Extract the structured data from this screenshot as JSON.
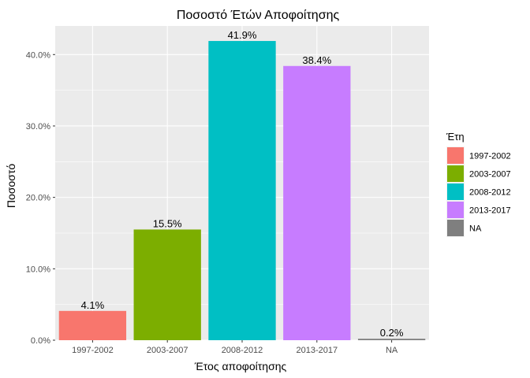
{
  "chart_data": {
    "type": "bar",
    "title": "Ποσοστό Έτών Αποφοίτησης",
    "xlabel": "Έτος αποφοίτησης",
    "ylabel": "Ποσοστό",
    "categories": [
      "1997-2002",
      "2003-2007",
      "2008-2012",
      "2013-2017",
      "NA"
    ],
    "values": [
      4.1,
      15.5,
      41.9,
      38.4,
      0.2
    ],
    "data_labels": [
      "4.1%",
      "15.5%",
      "41.9%",
      "38.4%",
      "0.2%"
    ],
    "colors": [
      "#F8766D",
      "#7CAE00",
      "#00BFC4",
      "#C77CFF",
      "#7F7F7F"
    ],
    "ylim": [
      0,
      44
    ],
    "yticks": [
      0,
      10,
      20,
      30,
      40
    ],
    "ytick_labels": [
      "0.0%",
      "10.0%",
      "20.0%",
      "30.0%",
      "40.0%"
    ],
    "grid": true,
    "legend": {
      "title": "Έτη",
      "position": "right",
      "entries": [
        "1997-2002",
        "2003-2007",
        "2008-2012",
        "2013-2017",
        "NA"
      ]
    }
  }
}
